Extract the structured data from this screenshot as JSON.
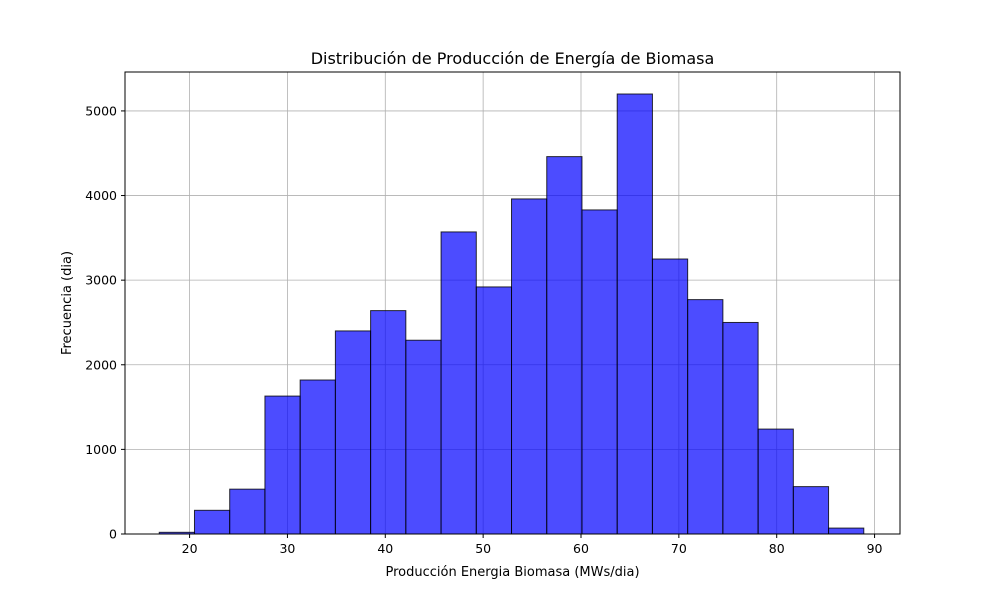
{
  "chart_data": {
    "type": "bar",
    "title": "Distribución de Producción de Energía de Biomasa",
    "xlabel": "Producción Energia Biomasa (MWs/dia)",
    "ylabel": "Frecuencia (dia)",
    "xlim": [
      13.4,
      92.6
    ],
    "ylim": [
      0,
      5460
    ],
    "grid": true,
    "bar_color": "#0000ff",
    "bar_opacity": 0.7,
    "bar_edge_color": "#000000",
    "x_ticks": [
      20,
      30,
      40,
      50,
      60,
      70,
      80,
      90
    ],
    "y_ticks": [
      0,
      1000,
      2000,
      3000,
      4000,
      5000
    ],
    "bin_edges": [
      16.9,
      20.5,
      24.1,
      27.7,
      31.3,
      34.9,
      38.5,
      42.1,
      45.7,
      49.3,
      52.9,
      56.5,
      60.1,
      63.7,
      67.3,
      70.9,
      74.5,
      78.1,
      81.7,
      85.3,
      88.9
    ],
    "values": [
      20,
      280,
      530,
      1630,
      1820,
      2400,
      2640,
      2290,
      3570,
      2920,
      3960,
      4460,
      3830,
      5200,
      3250,
      2770,
      2500,
      1240,
      560,
      70
    ]
  }
}
